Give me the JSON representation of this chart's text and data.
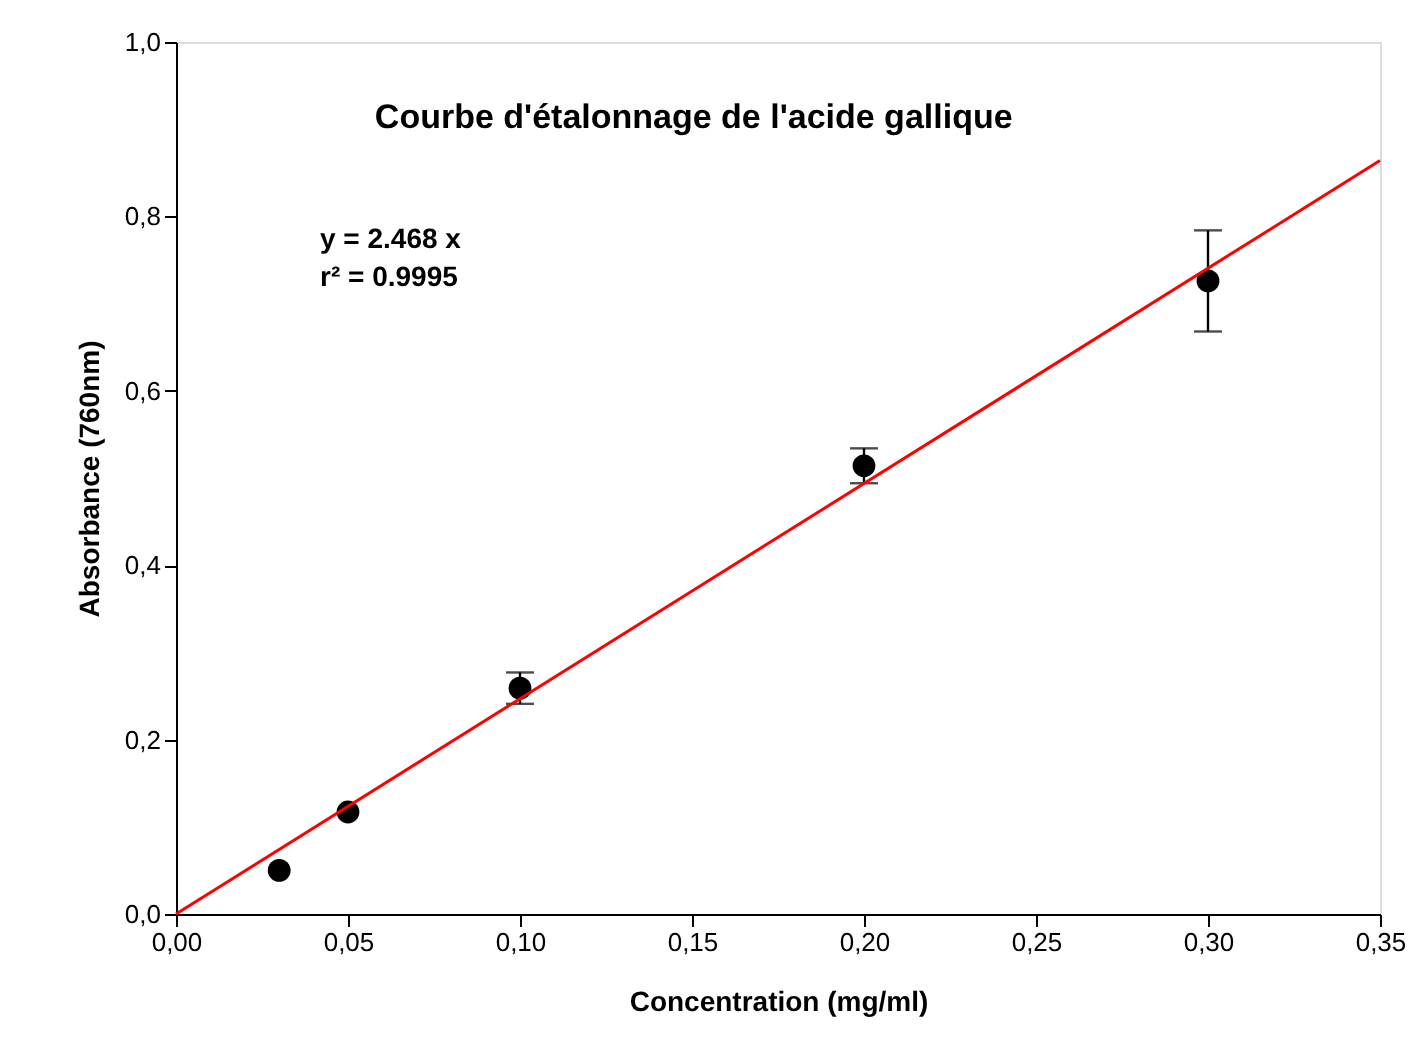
{
  "chart_data": {
    "type": "scatter",
    "title": "Courbe d'étalonnage de l'acide gallique",
    "xlabel": "Concentration (mg/ml)",
    "ylabel": "Absorbance (760nm)",
    "annotations": [
      "y = 2.468 x",
      "r² = 0.9995"
    ],
    "x": [
      0.03,
      0.05,
      0.1,
      0.2,
      0.3
    ],
    "series": [
      {
        "color": "#000000",
        "marker": "circle",
        "values": [
          0.05,
          0.117,
          0.259,
          0.514,
          0.726
        ],
        "errors": [
          null,
          null,
          0.018,
          0.02,
          0.058
        ]
      },
      {
        "type": "line",
        "color": "#ff0000",
        "x": [
          0,
          0.35
        ],
        "values": [
          0,
          0.864
        ],
        "line_style": "solid",
        "marker": "none"
      }
    ],
    "xlim": [
      0,
      0.35
    ],
    "ylim": [
      0,
      1.0
    ],
    "xticks": [
      {
        "value": 0,
        "label": "0,00"
      },
      {
        "value": 0.05,
        "label": "0,05"
      },
      {
        "value": 0.1,
        "label": "0,10"
      },
      {
        "value": 0.15,
        "label": "0,15"
      },
      {
        "value": 0.2,
        "label": "0,20"
      },
      {
        "value": 0.25,
        "label": "0,25"
      },
      {
        "value": 0.3,
        "label": "0,30"
      },
      {
        "value": 0.35,
        "label": "0,35"
      }
    ],
    "yticks": [
      {
        "value": 0,
        "label": "0,0"
      },
      {
        "value": 0.2,
        "label": "0,2"
      },
      {
        "value": 0.4,
        "label": "0,4"
      },
      {
        "value": 0.6,
        "label": "0,6"
      },
      {
        "value": 0.8,
        "label": "0,8"
      },
      {
        "value": 1.0,
        "label": "1,0"
      }
    ],
    "grid": false
  }
}
